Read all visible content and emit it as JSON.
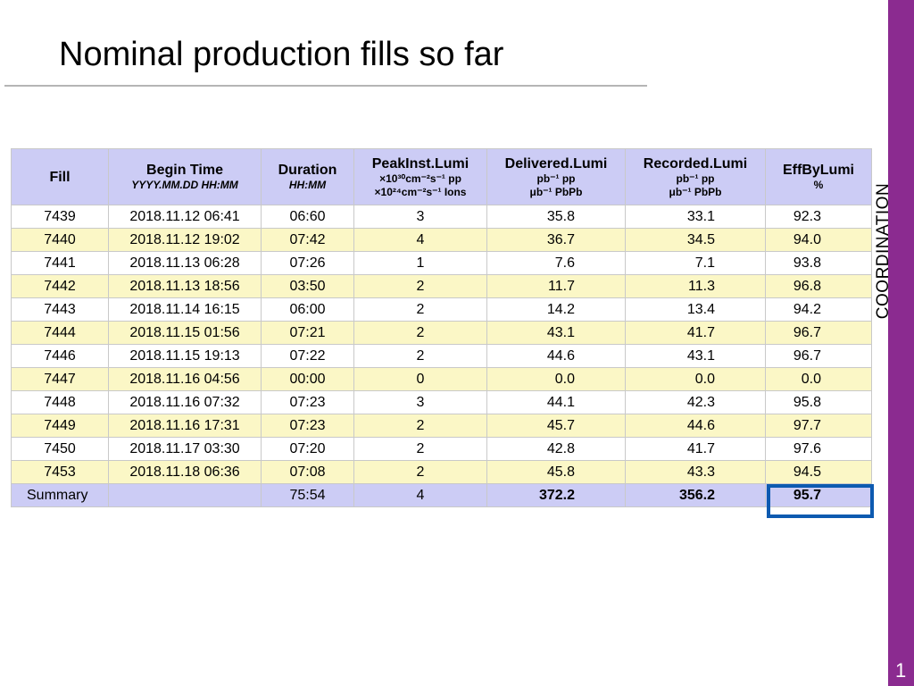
{
  "slide": {
    "title": "Nominal production fills so far",
    "side_label": "COORDINATION",
    "page_number": "1",
    "colors": {
      "side_bar": "#8b2b90",
      "header_bg": "#ccccf5",
      "alt_row_bg": "#fbf7c6",
      "highlight_border": "#0d5ab0"
    }
  },
  "table": {
    "headers": {
      "fill": "Fill",
      "begin_time": {
        "main": "Begin Time",
        "sub": "YYYY.MM.DD HH:MM"
      },
      "duration": {
        "main": "Duration",
        "sub": "HH:MM"
      },
      "peak_inst_lumi": {
        "main": "PeakInst.Lumi",
        "line1": "×10³⁰cm⁻²s⁻¹ pp",
        "line2": "×10²⁴cm⁻²s⁻¹ Ions"
      },
      "delivered_lumi": {
        "main": "Delivered.Lumi",
        "line1": "pb⁻¹ pp",
        "line2": "μb⁻¹ PbPb"
      },
      "recorded_lumi": {
        "main": "Recorded.Lumi",
        "line1": "pb⁻¹ pp",
        "line2": "μb⁻¹ PbPb"
      },
      "eff_by_lumi": {
        "main": "EffByLumi",
        "sub": "%"
      }
    },
    "rows": [
      {
        "fill": "7439",
        "begin": "2018.11.12 06:41",
        "duration": "06:60",
        "peak": "3",
        "delivered": "35.8",
        "recorded": "33.1",
        "eff": "92.3"
      },
      {
        "fill": "7440",
        "begin": "2018.11.12 19:02",
        "duration": "07:42",
        "peak": "4",
        "delivered": "36.7",
        "recorded": "34.5",
        "eff": "94.0"
      },
      {
        "fill": "7441",
        "begin": "2018.11.13 06:28",
        "duration": "07:26",
        "peak": "1",
        "delivered": "7.6",
        "recorded": "7.1",
        "eff": "93.8"
      },
      {
        "fill": "7442",
        "begin": "2018.11.13 18:56",
        "duration": "03:50",
        "peak": "2",
        "delivered": "11.7",
        "recorded": "11.3",
        "eff": "96.8"
      },
      {
        "fill": "7443",
        "begin": "2018.11.14 16:15",
        "duration": "06:00",
        "peak": "2",
        "delivered": "14.2",
        "recorded": "13.4",
        "eff": "94.2"
      },
      {
        "fill": "7444",
        "begin": "2018.11.15 01:56",
        "duration": "07:21",
        "peak": "2",
        "delivered": "43.1",
        "recorded": "41.7",
        "eff": "96.7"
      },
      {
        "fill": "7446",
        "begin": "2018.11.15 19:13",
        "duration": "07:22",
        "peak": "2",
        "delivered": "44.6",
        "recorded": "43.1",
        "eff": "96.7"
      },
      {
        "fill": "7447",
        "begin": "2018.11.16 04:56",
        "duration": "00:00",
        "peak": "0",
        "delivered": "0.0",
        "recorded": "0.0",
        "eff": "0.0"
      },
      {
        "fill": "7448",
        "begin": "2018.11.16 07:32",
        "duration": "07:23",
        "peak": "3",
        "delivered": "44.1",
        "recorded": "42.3",
        "eff": "95.8"
      },
      {
        "fill": "7449",
        "begin": "2018.11.16 17:31",
        "duration": "07:23",
        "peak": "2",
        "delivered": "45.7",
        "recorded": "44.6",
        "eff": "97.7"
      },
      {
        "fill": "7450",
        "begin": "2018.11.17 03:30",
        "duration": "07:20",
        "peak": "2",
        "delivered": "42.8",
        "recorded": "41.7",
        "eff": "97.6"
      },
      {
        "fill": "7453",
        "begin": "2018.11.18 06:36",
        "duration": "07:08",
        "peak": "2",
        "delivered": "45.8",
        "recorded": "43.3",
        "eff": "94.5"
      }
    ],
    "summary": {
      "label": "Summary",
      "begin": "",
      "duration": "75:54",
      "peak": "4",
      "delivered": "372.2",
      "recorded": "356.2",
      "eff": "95.7"
    }
  }
}
